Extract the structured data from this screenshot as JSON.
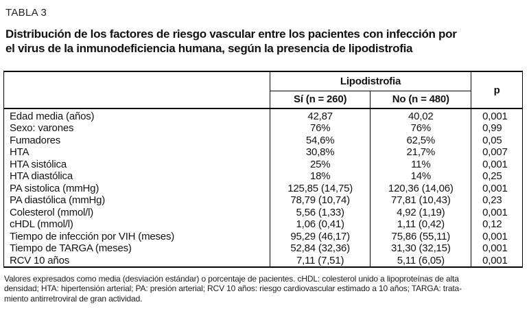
{
  "page": {
    "label": "TABLA 3",
    "title_lines": [
      "Distribución de los factores de riesgo vascular entre los pacientes con infección por",
      "el virus de la inmunodeficiencia humana, según la presencia de lipodistrofia"
    ]
  },
  "colors": {
    "text": "#111111",
    "border": "#000000",
    "background": "#ffffff"
  },
  "table": {
    "group_header": "Lipodistrofia",
    "col_headers": {
      "si": "Sí (n = 260)",
      "no": "No (n = 480)",
      "p": "p"
    },
    "rows": [
      {
        "label": "Edad media (años)",
        "si": "42,87",
        "no": "40,02",
        "p": "0,001"
      },
      {
        "label": "Sexo: varones",
        "si": "76%",
        "no": "76%",
        "p": "0,99"
      },
      {
        "label": "Fumadores",
        "si": "54,6%",
        "no": "62,5%",
        "p": "0,05"
      },
      {
        "label": "HTA",
        "si": "30,8%",
        "no": "21,7%",
        "p": "0,007"
      },
      {
        "label": "HTA sistólica",
        "si": "25%",
        "no": "11%",
        "p": "0,001"
      },
      {
        "label": "HTA diastólica",
        "si": "18%",
        "no": "14%",
        "p": "0,25"
      },
      {
        "label": "PA sistolica (mmHg)",
        "si": "125,85 (14,75)",
        "no": "120,36 (14,06)",
        "p": "0,001"
      },
      {
        "label": "PA diastólica (mmHg)",
        "si": "78,79 (10,74)",
        "no": "77,81 (10,43)",
        "p": "0,23"
      },
      {
        "label": "Colesterol (mmol/l)",
        "si": "5,56 (1,33)",
        "no": "4,92 (1,19)",
        "p": "0,001"
      },
      {
        "label": "cHDL (mmol/l)",
        "si": "1,06 (0,41)",
        "no": "1,11 (0,42)",
        "p": "0,12"
      },
      {
        "label": "Tiempo de infección por VIH (meses)",
        "si": "95,29 (46,17)",
        "no": "75,86 (55,11)",
        "p": "0,001"
      },
      {
        "label": "Tiempo de TARGA (meses)",
        "si": "52,84 (32,36)",
        "no": "31,30 (32,15)",
        "p": "0,001"
      },
      {
        "label": "RCV 10 años",
        "si": "7,11 (7,51)",
        "no": "5,11 (6,05)",
        "p": "0,001"
      }
    ]
  },
  "footnote_lines": [
    "Valores expresados como media (desviación estándar) o porcentaje de pacientes. cHDL: colesterol unido a lipoproteínas de alta",
    "densidad; HTA: hipertensión arterial; PA: presión arterial; RCV 10 años: riesgo cardiovascular estimado a 10 años; TARGA: trata-",
    "miento antirretroviral de gran actividad."
  ]
}
